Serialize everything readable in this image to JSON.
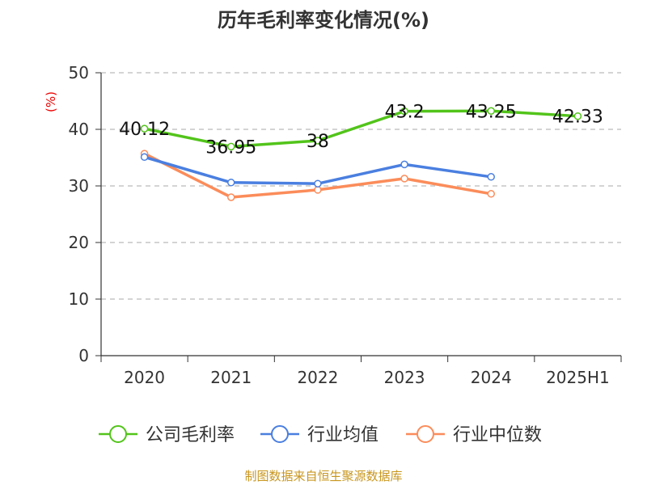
{
  "chart_data": {
    "type": "line",
    "title": "历年毛利率变化情况(%)",
    "ylabel": "(%)",
    "categories": [
      "2020",
      "2021",
      "2022",
      "2023",
      "2024",
      "2025H1"
    ],
    "ylim": [
      0,
      50
    ],
    "yticks": [
      0,
      10,
      20,
      30,
      40,
      50
    ],
    "grid": true,
    "legend_position": "bottom",
    "series": [
      {
        "name": "公司毛利率",
        "color": "#52c41a",
        "values": [
          40.12,
          36.95,
          38,
          43.2,
          43.25,
          42.33
        ],
        "labels": [
          "40.12",
          "36.95",
          "38",
          "43.2",
          "43.25",
          "42.33"
        ]
      },
      {
        "name": "行业均值",
        "color": "#4a7fe0",
        "values": [
          35.1,
          30.6,
          30.4,
          33.8,
          31.6,
          null
        ]
      },
      {
        "name": "行业中位数",
        "color": "#fb8c5a",
        "values": [
          35.7,
          28.0,
          29.3,
          31.3,
          28.6,
          null
        ]
      }
    ]
  },
  "source": "制图数据来自恒生聚源数据库"
}
